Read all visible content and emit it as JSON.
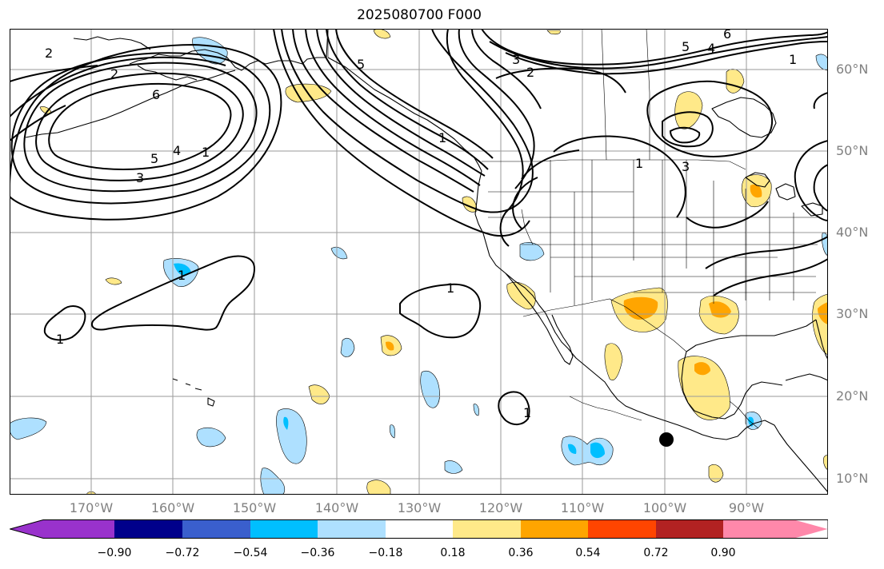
{
  "title": "2025080700 F000",
  "lat_labels": [
    "60°N",
    "50°N",
    "40°N",
    "30°N",
    "20°N",
    "10°N"
  ],
  "lon_labels": [
    "170°W",
    "160°W",
    "150°W",
    "140°W",
    "130°W",
    "120°W",
    "110°W",
    "100°W",
    "90°W"
  ],
  "colorbar": {
    "tick_labels": [
      "−0.90",
      "−0.72",
      "−0.54",
      "−0.36",
      "−0.18",
      "0.18",
      "0.36",
      "0.54",
      "0.72",
      "0.90"
    ],
    "colors": [
      "#9932cc",
      "#00008b",
      "#3a5fcd",
      "#00bfff",
      "#aee0ff",
      "#ffffff",
      "#ffe989",
      "#ffa500",
      "#ff4500",
      "#b22222",
      "#ff88aa"
    ]
  },
  "contour_labels": {
    "aleutian_low": [
      "2",
      "2",
      "6",
      "5",
      "4",
      "3",
      "1"
    ],
    "gulf_of_alaska": [
      "5",
      "1"
    ],
    "canada": [
      "3",
      "2",
      "5",
      "6",
      "4",
      "3",
      "1",
      "1"
    ],
    "pacific": [
      "1",
      "1",
      "1",
      "1"
    ]
  },
  "marker": "storm-center-dot"
}
